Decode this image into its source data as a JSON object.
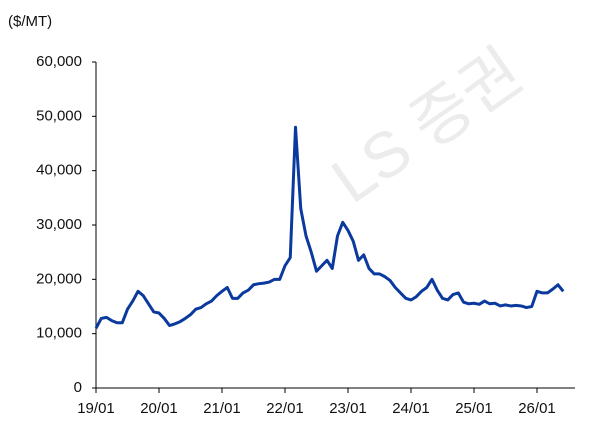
{
  "chart_data": {
    "type": "line",
    "y_axis_label": "($/MT)",
    "annotation": "LS 증권",
    "x": [
      "19/01",
      "19/02",
      "19/03",
      "19/04",
      "19/05",
      "19/06",
      "19/07",
      "19/08",
      "19/09",
      "19/10",
      "19/11",
      "19/12",
      "20/01",
      "20/02",
      "20/03",
      "20/04",
      "20/05",
      "20/06",
      "20/07",
      "20/08",
      "20/09",
      "20/10",
      "20/11",
      "20/12",
      "21/01",
      "21/02",
      "21/03",
      "21/04",
      "21/05",
      "21/06",
      "21/07",
      "21/08",
      "21/09",
      "21/10",
      "21/11",
      "21/12",
      "22/01",
      "22/02",
      "22/03",
      "22/04",
      "22/05",
      "22/06",
      "22/07",
      "22/08",
      "22/09",
      "22/10",
      "22/11",
      "22/12",
      "23/01",
      "23/02",
      "23/03",
      "23/04",
      "23/05",
      "23/06",
      "23/07",
      "23/08",
      "23/09",
      "23/10",
      "23/11",
      "23/12",
      "24/01",
      "24/02",
      "24/03",
      "24/04",
      "24/05",
      "24/06",
      "24/07",
      "24/08",
      "24/09",
      "24/10",
      "24/11",
      "24/12",
      "25/01",
      "25/02",
      "25/03",
      "25/04",
      "25/05",
      "25/06",
      "25/07",
      "25/08",
      "25/09",
      "25/10",
      "25/11",
      "25/12",
      "26/01",
      "26/02",
      "26/03",
      "26/04",
      "26/05",
      "26/06"
    ],
    "series": [
      {
        "color": "#0b3a9e",
        "values": [
          11000,
          12800,
          13000,
          12400,
          12000,
          12000,
          14500,
          16000,
          17800,
          17000,
          15500,
          14000,
          13800,
          12800,
          11500,
          11800,
          12200,
          12800,
          13500,
          14500,
          14800,
          15500,
          16000,
          17000,
          17800,
          18500,
          16500,
          16500,
          17500,
          18000,
          19000,
          19200,
          19300,
          19500,
          20000,
          20000,
          22500,
          24000,
          48000,
          33000,
          28000,
          25000,
          21500,
          22500,
          23500,
          22000,
          28000,
          30500,
          29000,
          27000,
          23500,
          24500,
          22000,
          21000,
          21000,
          20500,
          19800,
          18500,
          17500,
          16500,
          16200,
          16800,
          17800,
          18500,
          20000,
          18000,
          16500,
          16200,
          17200,
          17500,
          15800,
          15500,
          15600,
          15400,
          16000,
          15500,
          15600,
          15100,
          15300,
          15100,
          15200,
          15100,
          14800,
          15000,
          17800,
          17500,
          17500,
          18200,
          19000,
          17800
        ]
      }
    ],
    "xticks": [
      "19/01",
      "20/01",
      "21/01",
      "22/01",
      "23/01",
      "24/01",
      "25/01",
      "26/01"
    ],
    "ylim": [
      0,
      60000
    ],
    "yticks": [
      0,
      {
        "value": 10000,
        "label": "10,000"
      },
      {
        "value": 20000,
        "label": "20,000"
      },
      {
        "value": 30000,
        "label": "30,000"
      },
      {
        "value": 40000,
        "label": "40,000"
      },
      {
        "value": 50000,
        "label": "50,000"
      },
      {
        "value": 60000,
        "label": "60,000"
      }
    ],
    "grid": false
  }
}
